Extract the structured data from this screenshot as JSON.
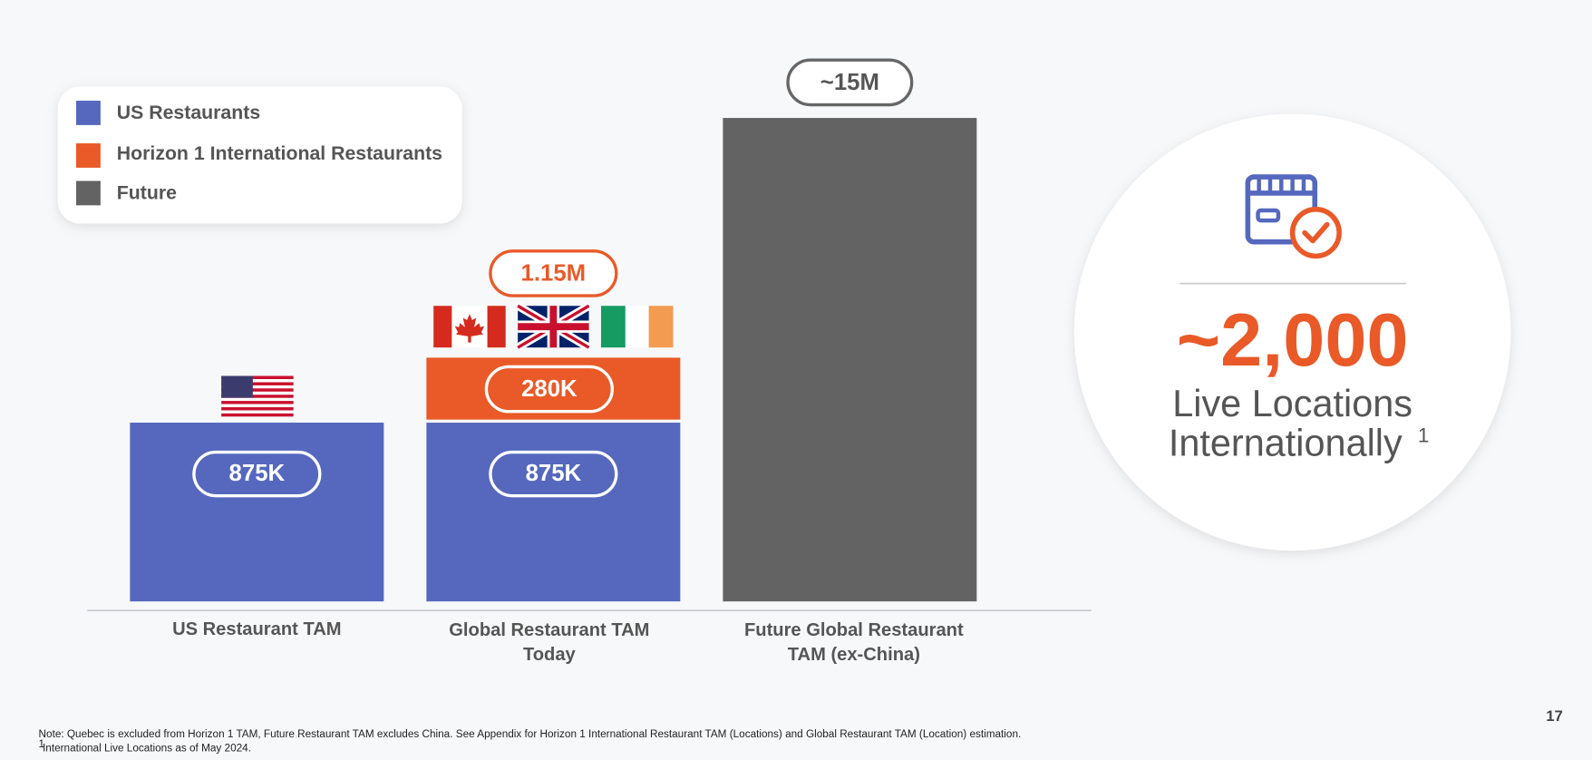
{
  "legend": [
    "US Restaurants",
    "Horizon 1 International Restaurants",
    "Future"
  ],
  "bars": [
    {
      "category": [
        "US Restaurant TAM"
      ],
      "segments": [
        "875K"
      ]
    },
    {
      "category": [
        "Global Restaurant TAM",
        "Today"
      ],
      "segments": [
        "875K",
        "280K"
      ],
      "total": "1.15M"
    },
    {
      "category": [
        "Future Global Restaurant",
        "TAM (ex-China)"
      ],
      "segments": [],
      "total": "~15M"
    }
  ],
  "stat": {
    "value": "~2,000",
    "line1": "Live Locations",
    "line2": "Internationally",
    "marker": "1"
  },
  "footnotes": {
    "note": "Note: Quebec is excluded from Horizon 1 TAM, Future Restaurant TAM excludes China. See Appendix for Horizon 1 International Restaurant TAM (Locations) and Global Restaurant TAM (Location) estimation.",
    "marker": "1",
    "text": "International Live Locations as of May 2024."
  },
  "page_number": "17"
}
